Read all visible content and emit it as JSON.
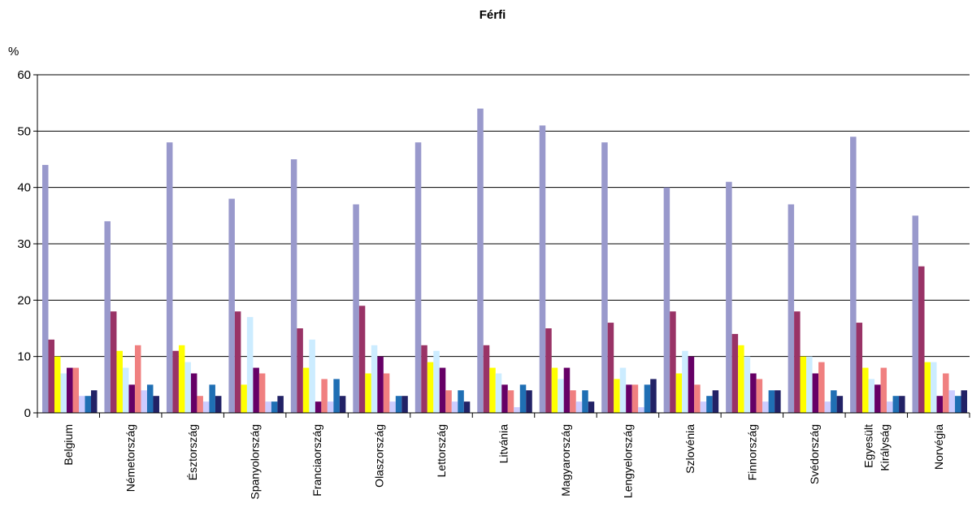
{
  "chart_data": {
    "type": "bar",
    "title": "Férfi",
    "ylabel": "%",
    "xlabel": "",
    "ylim": [
      0,
      60
    ],
    "yticks": [
      0,
      10,
      20,
      30,
      40,
      50,
      60
    ],
    "grid": true,
    "legend": "none",
    "categories": [
      "Belgium",
      "Németország",
      "Észtország",
      "Spanyolország",
      "Franciaország",
      "Olaszország",
      "Lettország",
      "Litvánia",
      "Magyarország",
      "Lengyelország",
      "Szlovénia",
      "Finnország",
      "Svédország",
      "Egyesült Királyság",
      "Norvégia"
    ],
    "series": [
      {
        "color": "#9999cc",
        "values": [
          44,
          34,
          48,
          38,
          45,
          37,
          48,
          54,
          51,
          48,
          40,
          41,
          37,
          49,
          35
        ]
      },
      {
        "color": "#993366",
        "values": [
          13,
          18,
          11,
          18,
          15,
          19,
          12,
          12,
          15,
          16,
          18,
          14,
          18,
          16,
          26
        ]
      },
      {
        "color": "#ffff00",
        "values": [
          10,
          11,
          12,
          5,
          8,
          7,
          9,
          8,
          8,
          6,
          7,
          12,
          10,
          8,
          9
        ]
      },
      {
        "color": "#ccecff",
        "values": [
          7,
          8,
          9,
          17,
          13,
          12,
          11,
          7,
          6,
          8,
          11,
          10,
          10,
          6,
          9
        ]
      },
      {
        "color": "#660066",
        "values": [
          8,
          5,
          7,
          8,
          2,
          10,
          8,
          5,
          8,
          5,
          10,
          7,
          7,
          5,
          3
        ]
      },
      {
        "color": "#f08080",
        "values": [
          8,
          12,
          3,
          7,
          6,
          7,
          4,
          4,
          4,
          5,
          5,
          6,
          9,
          8,
          7
        ]
      },
      {
        "color": "#ccccff",
        "values": [
          3,
          4,
          2,
          2,
          2,
          2,
          2,
          1,
          2,
          1,
          2,
          2,
          2,
          2,
          4
        ]
      },
      {
        "color": "#1f6fb4",
        "values": [
          3,
          5,
          5,
          2,
          6,
          3,
          4,
          5,
          4,
          5,
          3,
          4,
          4,
          3,
          3
        ]
      },
      {
        "color": "#222266",
        "values": [
          4,
          3,
          3,
          3,
          3,
          3,
          2,
          4,
          2,
          6,
          4,
          4,
          3,
          3,
          4
        ]
      }
    ]
  }
}
